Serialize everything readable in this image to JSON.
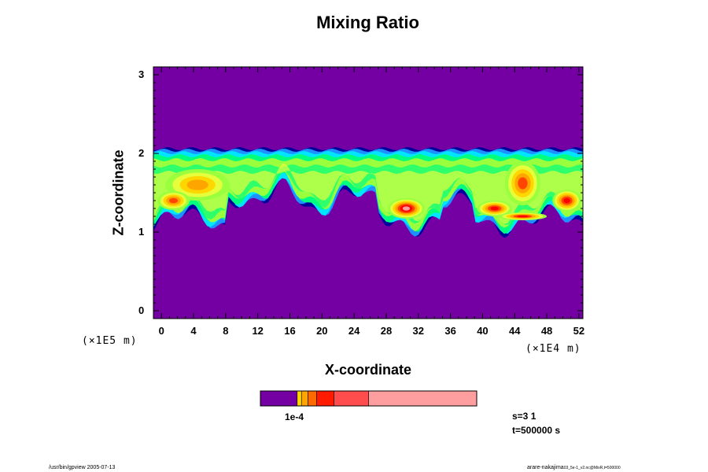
{
  "chart_data": {
    "type": "heatmap",
    "title": "Mixing Ratio",
    "xlabel": "X-coordinate",
    "ylabel": "Z-coordinate",
    "x_unit": "(×1E4 m)",
    "y_unit": "(×1E5 m)",
    "xlim": [
      -1,
      52.5
    ],
    "ylim": [
      -0.1,
      3.1
    ],
    "x_ticks": [
      "0",
      "4",
      "8",
      "12",
      "16",
      "20",
      "24",
      "28",
      "32",
      "36",
      "40",
      "44",
      "48",
      "52"
    ],
    "x_tick_values": [
      0,
      4,
      8,
      12,
      16,
      20,
      24,
      28,
      32,
      36,
      40,
      44,
      48,
      52
    ],
    "y_ticks": [
      "0",
      "1",
      "2",
      "3"
    ],
    "y_tick_values": [
      0,
      1,
      2,
      3
    ],
    "background_color": "#7400a4",
    "layer": {
      "z_bottom": 1.15,
      "z_top": 2.06,
      "description_colors": [
        "#00009a",
        "#1e90ff",
        "#00e5ff",
        "#00ff7f",
        "#9aff3c",
        "#e6ff3c",
        "#ffd700",
        "#ffa500",
        "#ff4500",
        "#ff0000",
        "#ff9e9e",
        "#ffffff"
      ]
    },
    "hot_spots": [
      {
        "x": 30.5,
        "z": 1.3,
        "rx": 2.3,
        "rz": 0.13,
        "level": 10
      },
      {
        "x": 4.5,
        "z": 1.6,
        "rx": 4.0,
        "rz": 0.2,
        "level": 7
      },
      {
        "x": 45,
        "z": 1.62,
        "rx": 2.2,
        "rz": 0.28,
        "level": 8
      },
      {
        "x": 1.5,
        "z": 1.4,
        "rx": 2.0,
        "rz": 0.12,
        "level": 8
      },
      {
        "x": 41.5,
        "z": 1.3,
        "rx": 2.2,
        "rz": 0.1,
        "level": 9
      },
      {
        "x": 45,
        "z": 1.2,
        "rx": 3.0,
        "rz": 0.05,
        "level": 9
      },
      {
        "x": 50.5,
        "z": 1.4,
        "rx": 1.8,
        "rz": 0.14,
        "level": 9
      }
    ],
    "colorbar": {
      "colors": [
        "#7400a4",
        "#ffd700",
        "#ffa500",
        "#ff6a00",
        "#ff1a00",
        "#ff4c4c",
        "#ff9e9e"
      ],
      "widths": [
        0.17,
        0.02,
        0.03,
        0.04,
        0.08,
        0.16,
        0.5
      ],
      "label": "1e-4"
    },
    "info": {
      "s_label": "s=3 1",
      "t_label": "t=500000 s"
    }
  },
  "footer": {
    "left": "/usr/bin/gpview 2005-07-13",
    "right_main": "arare-nakajima",
    "right_small": "03_5e-1_v2.nc@MixR,t=500000"
  }
}
